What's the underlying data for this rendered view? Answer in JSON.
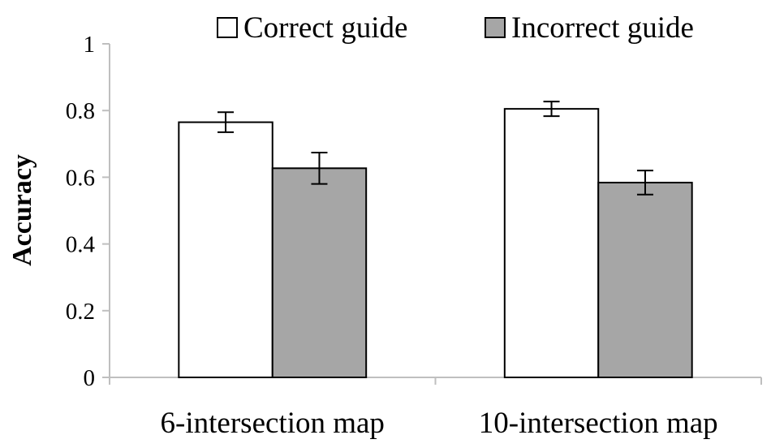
{
  "chart_data": {
    "type": "bar",
    "categories": [
      "6-intersection map",
      "10-intersection map"
    ],
    "series": [
      {
        "name": "Correct guide",
        "values": [
          0.765,
          0.805
        ],
        "errors": [
          0.03,
          0.022
        ],
        "color": "#ffffff"
      },
      {
        "name": "Incorrect guide",
        "values": [
          0.627,
          0.584
        ],
        "errors": [
          0.047,
          0.036
        ],
        "color": "#a6a6a6"
      }
    ],
    "title": "",
    "xlabel": "",
    "ylabel": "Accuracy",
    "ylim": [
      0,
      1
    ],
    "yticks": [
      "0",
      "0.2",
      "0.4",
      "0.6",
      "0.8",
      "1"
    ],
    "grid": false,
    "legend_position": "top"
  }
}
